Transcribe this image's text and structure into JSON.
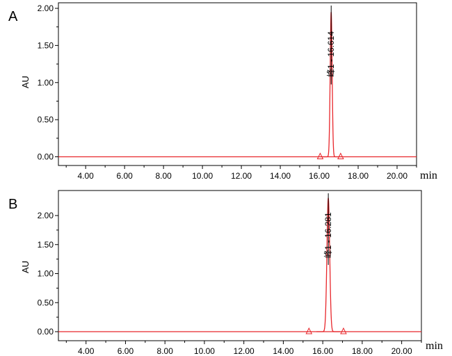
{
  "chart_data": [
    {
      "type": "line",
      "panel_label": "A",
      "ylabel": "AU",
      "xunit": "min",
      "xlim": [
        2.6,
        21.0
      ],
      "ylim": [
        -0.08,
        2.05
      ],
      "x_ticks": [
        {
          "value": 4.0,
          "label": "4.00"
        },
        {
          "value": 6.0,
          "label": "6.00"
        },
        {
          "value": 8.0,
          "label": "8.00"
        },
        {
          "value": 10.0,
          "label": "10.00"
        },
        {
          "value": 12.0,
          "label": "12.00"
        },
        {
          "value": 14.0,
          "label": "14.00"
        },
        {
          "value": 16.0,
          "label": "16.00"
        },
        {
          "value": 18.0,
          "label": "18.00"
        },
        {
          "value": 20.0,
          "label": "20.00"
        }
      ],
      "y_ticks": [
        {
          "value": 0.0,
          "label": "0.00"
        },
        {
          "value": 0.5,
          "label": "0.50"
        },
        {
          "value": 1.0,
          "label": "1.00"
        },
        {
          "value": 1.5,
          "label": "1.50"
        },
        {
          "value": 2.0,
          "label": "2.00"
        }
      ],
      "peak": {
        "retention_time": 16.614,
        "height": 1.95,
        "width": 0.05,
        "label": "峰1 - 16.614"
      },
      "integration_markers": [
        16.05,
        17.1
      ],
      "baseline": 0.0
    },
    {
      "type": "line",
      "panel_label": "B",
      "ylabel": "AU",
      "xunit": "min",
      "xlim": [
        2.6,
        21.0
      ],
      "ylim": [
        -0.08,
        2.42
      ],
      "x_ticks": [
        {
          "value": 4.0,
          "label": "4.00"
        },
        {
          "value": 6.0,
          "label": "6.00"
        },
        {
          "value": 8.0,
          "label": "8.00"
        },
        {
          "value": 10.0,
          "label": "10.00"
        },
        {
          "value": 12.0,
          "label": "12.00"
        },
        {
          "value": 14.0,
          "label": "14.00"
        },
        {
          "value": 16.0,
          "label": "16.00"
        },
        {
          "value": 18.0,
          "label": "18.00"
        },
        {
          "value": 20.0,
          "label": "20.00"
        }
      ],
      "y_ticks": [
        {
          "value": 0.0,
          "label": "0.00"
        },
        {
          "value": 0.5,
          "label": "0.50"
        },
        {
          "value": 1.0,
          "label": "1.00"
        },
        {
          "value": 1.5,
          "label": "1.50"
        },
        {
          "value": 2.0,
          "label": "2.00"
        }
      ],
      "peak": {
        "retention_time": 16.281,
        "height": 2.3,
        "width": 0.07,
        "label": "峰1 - 16.281"
      },
      "integration_markers": [
        15.3,
        17.05
      ],
      "baseline": 0.0
    }
  ],
  "colors": {
    "trace": "#e8262b",
    "baseline": "#e8262b",
    "axis": "#000000",
    "marker": "#e8262b"
  }
}
